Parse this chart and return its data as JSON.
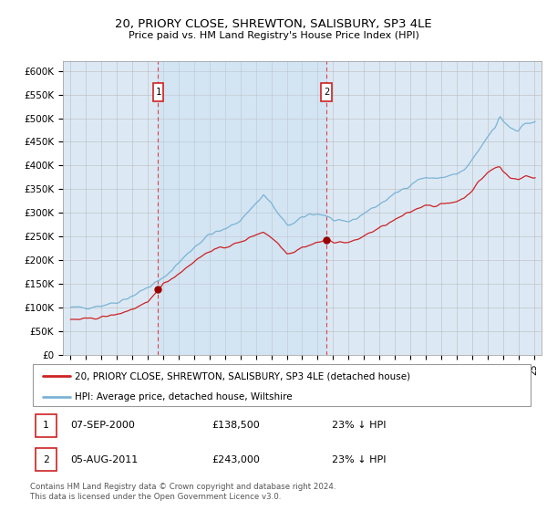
{
  "title": "20, PRIORY CLOSE, SHREWTON, SALISBURY, SP3 4LE",
  "subtitle": "Price paid vs. HM Land Registry's House Price Index (HPI)",
  "plot_bg_color": "#dce9f5",
  "ylabel_ticks": [
    "£0",
    "£50K",
    "£100K",
    "£150K",
    "£200K",
    "£250K",
    "£300K",
    "£350K",
    "£400K",
    "£450K",
    "£500K",
    "£550K",
    "£600K"
  ],
  "ylim": [
    0,
    620000
  ],
  "xlim": [
    1994.5,
    2025.5
  ],
  "xtick_years": [
    1995,
    1996,
    1997,
    1998,
    1999,
    2000,
    2001,
    2002,
    2003,
    2004,
    2005,
    2006,
    2007,
    2008,
    2009,
    2010,
    2011,
    2012,
    2013,
    2014,
    2015,
    2016,
    2017,
    2018,
    2019,
    2020,
    2021,
    2022,
    2023,
    2024,
    2025
  ],
  "sale1_x": 2000.67,
  "sale1_y": 138500,
  "sale2_x": 2011.58,
  "sale2_y": 243000,
  "legend_line1": "20, PRIORY CLOSE, SHREWTON, SALISBURY, SP3 4LE (detached house)",
  "legend_line2": "HPI: Average price, detached house, Wiltshire",
  "note1_label": "1",
  "note1_date": "07-SEP-2000",
  "note1_price": "£138,500",
  "note1_hpi": "23% ↓ HPI",
  "note2_label": "2",
  "note2_date": "05-AUG-2011",
  "note2_price": "£243,000",
  "note2_hpi": "23% ↓ HPI",
  "footer": "Contains HM Land Registry data © Crown copyright and database right 2024.\nThis data is licensed under the Open Government Licence v3.0.",
  "hpi_color": "#7ab3d4",
  "sale_color": "#cc2222",
  "sale_dot_color": "#990000",
  "vline_color": "#dd4444",
  "annotation_box_color": "#cc2222",
  "shade_color": "#ddeeff"
}
